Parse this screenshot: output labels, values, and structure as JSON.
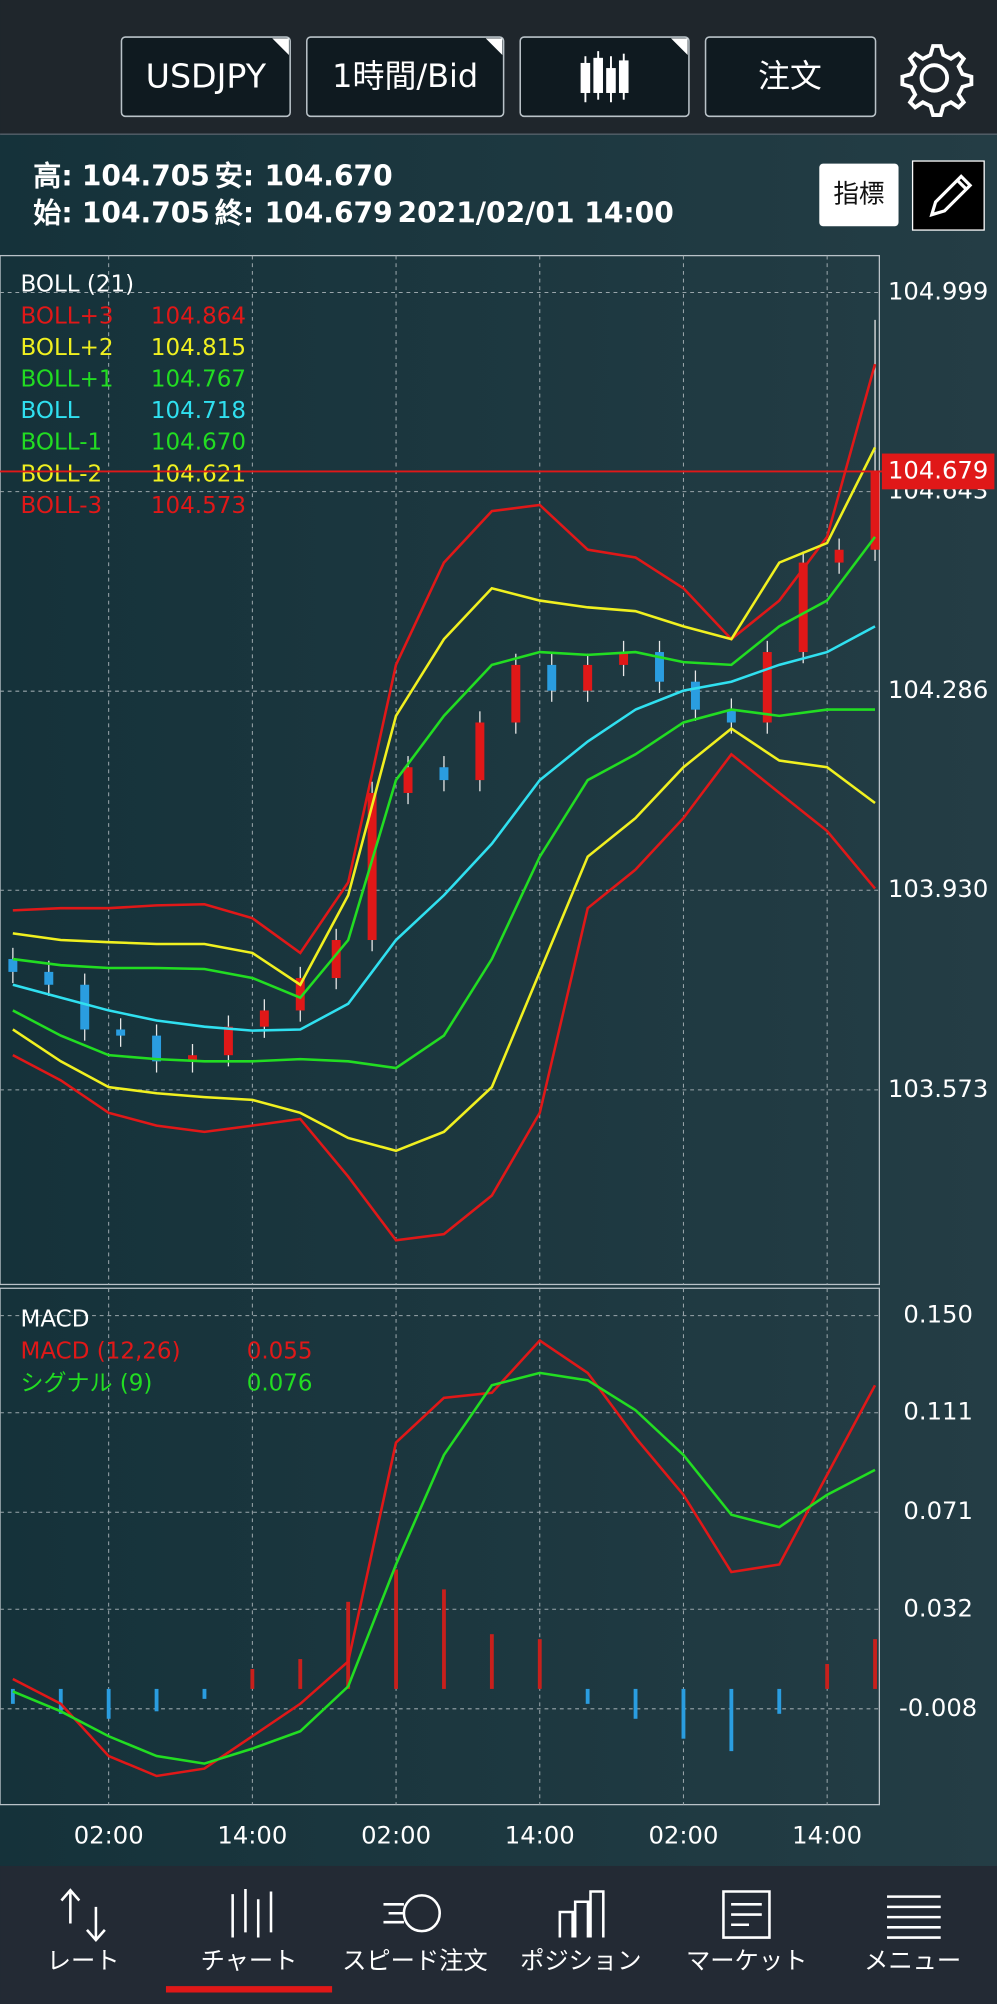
{
  "header": {
    "symbol": "USDJPY",
    "timeframe": "1時間/Bid",
    "order": "注文"
  },
  "info": {
    "high_label": "高:",
    "high": "104.705",
    "low_label": "安:",
    "low": "104.670",
    "open_label": "始:",
    "open": "104.705",
    "close_label": "終:",
    "close": "104.679",
    "datetime": "2021/02/01 14:00"
  },
  "indicator_button": "指標",
  "main_chart": {
    "type": "candlestick",
    "legend_title": "BOLL (21)",
    "xlim": [
      -1.07,
      72.36
    ],
    "ylim": [
      103.225,
      105.065
    ],
    "yticks": [
      104.999,
      104.643,
      104.286,
      {
        "value": 103.93,
        "label": "103.930"
      },
      103.573
    ],
    "xticks": [
      {
        "value": 8,
        "label": "02:00"
      },
      {
        "value": 20,
        "label": "14:00"
      },
      {
        "value": 32,
        "label": "02:00"
      },
      {
        "value": 44,
        "label": "14:00"
      },
      {
        "value": 56,
        "label": "02:00"
      },
      {
        "value": 68,
        "label": "14:00"
      }
    ],
    "grid": true,
    "current_price": {
      "value": 104.679,
      "label": "104.679",
      "color": "#e01818"
    },
    "up_color": "#e01818",
    "down_color": "#2a9de0",
    "candles": {
      "x": [
        0,
        3,
        6,
        9,
        12,
        15,
        18,
        21,
        24,
        27,
        30,
        33,
        36,
        39,
        42,
        45,
        48,
        51,
        54,
        57,
        60,
        63,
        66,
        69,
        72
      ],
      "open": [
        103.807,
        103.784,
        103.761,
        103.681,
        103.67,
        103.624,
        103.635,
        103.686,
        103.715,
        103.773,
        103.841,
        104.104,
        104.15,
        104.127,
        104.23,
        104.333,
        104.287,
        104.333,
        104.356,
        104.303,
        104.253,
        104.23,
        104.356,
        104.516,
        104.539
      ],
      "high": [
        103.827,
        103.804,
        103.781,
        103.701,
        103.69,
        103.655,
        103.706,
        103.735,
        103.793,
        103.861,
        104.124,
        104.17,
        104.17,
        104.25,
        104.353,
        104.353,
        104.353,
        104.376,
        104.376,
        104.323,
        104.273,
        104.376,
        104.536,
        104.559,
        104.95
      ],
      "low": [
        103.764,
        103.741,
        103.661,
        103.65,
        103.604,
        103.604,
        103.615,
        103.666,
        103.695,
        103.753,
        103.821,
        104.084,
        104.107,
        104.107,
        104.21,
        104.267,
        104.267,
        104.313,
        104.283,
        104.233,
        104.21,
        104.21,
        104.336,
        104.496,
        104.519
      ],
      "close": [
        103.784,
        103.761,
        103.681,
        103.67,
        103.624,
        103.635,
        103.686,
        103.715,
        103.773,
        103.841,
        104.104,
        104.15,
        104.127,
        104.23,
        104.333,
        104.287,
        104.333,
        104.356,
        104.303,
        104.253,
        104.23,
        104.356,
        104.516,
        104.539,
        104.679
      ]
    },
    "x": [
      0,
      4,
      8,
      12,
      16,
      20,
      24,
      28,
      32,
      36,
      40,
      44,
      48,
      52,
      56,
      60,
      64,
      68,
      72
    ],
    "series": [
      {
        "name": "BOLL+3",
        "label": "104.864",
        "color": "#e01818",
        "values": [
          103.894,
          103.898,
          103.898,
          103.903,
          103.905,
          103.88,
          103.818,
          103.944,
          104.333,
          104.516,
          104.608,
          104.619,
          104.539,
          104.525,
          104.47,
          104.379,
          104.448,
          104.562,
          104.871
        ]
      },
      {
        "name": "BOLL+2",
        "label": "104.815",
        "color": "#f0f020",
        "values": [
          103.853,
          103.841,
          103.837,
          103.834,
          103.834,
          103.818,
          103.761,
          103.921,
          104.242,
          104.379,
          104.47,
          104.448,
          104.436,
          104.429,
          104.402,
          104.379,
          104.516,
          104.551,
          104.722
        ]
      },
      {
        "name": "BOLL+1",
        "label": "104.767",
        "color": "#22dd22",
        "values": [
          103.807,
          103.796,
          103.791,
          103.791,
          103.789,
          103.773,
          103.738,
          103.841,
          104.127,
          104.242,
          104.333,
          104.356,
          104.351,
          104.356,
          104.338,
          104.333,
          104.402,
          104.448,
          104.562
        ]
      },
      {
        "name": "BOLL",
        "label": "104.718",
        "color": "#30e0f0",
        "values": [
          103.761,
          103.738,
          103.715,
          103.697,
          103.686,
          103.679,
          103.681,
          103.727,
          103.841,
          103.921,
          104.013,
          104.127,
          104.196,
          104.253,
          104.287,
          104.303,
          104.333,
          104.356,
          104.402
        ]
      },
      {
        "name": "BOLL-1",
        "label": "104.670",
        "color": "#22dd22",
        "values": [
          103.715,
          103.67,
          103.635,
          103.628,
          103.624,
          103.624,
          103.628,
          103.624,
          103.612,
          103.67,
          103.807,
          103.99,
          104.127,
          104.173,
          104.23,
          104.253,
          104.242,
          104.253,
          104.253
        ]
      },
      {
        "name": "BOLL-2",
        "label": "104.621",
        "color": "#f0f020",
        "values": [
          103.681,
          103.624,
          103.578,
          103.567,
          103.56,
          103.555,
          103.532,
          103.487,
          103.464,
          103.498,
          103.578,
          103.784,
          103.99,
          104.059,
          104.15,
          104.219,
          104.162,
          104.15,
          104.086
        ]
      },
      {
        "name": "BOLL-3",
        "label": "104.573",
        "color": "#e01818",
        "values": [
          103.635,
          103.59,
          103.532,
          103.509,
          103.498,
          103.509,
          103.521,
          103.418,
          103.304,
          103.315,
          103.384,
          103.532,
          103.898,
          103.967,
          104.059,
          104.173,
          104.104,
          104.036,
          103.933
        ]
      }
    ]
  },
  "macd_chart": {
    "type": "line",
    "title": "MACD",
    "ylim": [
      -0.0465,
      0.161
    ],
    "yticks": [
      {
        "value": 0.15,
        "label": "0.150"
      },
      0.111,
      0.071,
      0.032,
      -0.008
    ],
    "grid": true,
    "series": [
      {
        "name": "MACD (12,26)",
        "label": "0.055",
        "color": "#e01818",
        "values": [
          0.004,
          -0.006,
          -0.027,
          -0.035,
          -0.032,
          -0.019,
          -0.006,
          0.011,
          0.099,
          0.117,
          0.119,
          0.14,
          0.127,
          0.101,
          0.078,
          0.047,
          0.05,
          0.086,
          0.122
        ]
      },
      {
        "name": "シグナル (9)",
        "label": "0.076",
        "color": "#22dd22",
        "values": [
          -0.001,
          -0.009,
          -0.019,
          -0.027,
          -0.03,
          -0.024,
          -0.017,
          0.001,
          0.05,
          0.094,
          0.122,
          0.127,
          0.124,
          0.112,
          0.094,
          0.07,
          0.065,
          0.078,
          0.088
        ]
      }
    ],
    "histogram": {
      "up_color": "#c8201c",
      "down_color": "#2a9de0",
      "values": [
        -0.006,
        -0.01,
        -0.012,
        -0.009,
        -0.004,
        0.008,
        0.012,
        0.035,
        0.048,
        0.04,
        0.022,
        0.02,
        -0.006,
        -0.012,
        -0.02,
        -0.025,
        -0.01,
        0.01,
        0.02
      ]
    }
  },
  "tabs": [
    "レート",
    "チャート",
    "スピード注文",
    "ポジション",
    "マーケット",
    "メニュー"
  ],
  "active_tab": 1
}
